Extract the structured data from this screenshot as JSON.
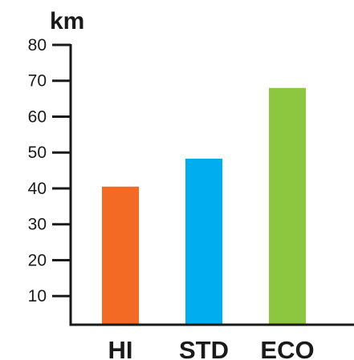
{
  "chart_data": {
    "type": "bar",
    "title": "",
    "ylabel": "km",
    "xlabel": "",
    "categories": [
      "HI",
      "STD",
      "ECO"
    ],
    "values": [
      40.5,
      48.3,
      68
    ],
    "colors": [
      "#f26a23",
      "#00aeef",
      "#8dc63f"
    ],
    "ylim": [
      2,
      80
    ],
    "yticks": [
      10,
      20,
      30,
      40,
      50,
      60,
      70,
      80
    ],
    "grid": false,
    "legend": "none"
  }
}
